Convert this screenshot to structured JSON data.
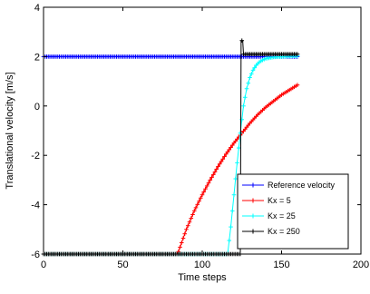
{
  "chart_data": {
    "type": "line",
    "title": "",
    "xlabel": "Time steps",
    "ylabel": "Translational velocity  [m/s]",
    "xlim": [
      0,
      200
    ],
    "ylim": [
      -6,
      4
    ],
    "xticks": [
      "0",
      "50",
      "100",
      "150",
      "200"
    ],
    "yticks": [
      "-6",
      "-4",
      "-2",
      "0",
      "2",
      "4"
    ],
    "grid": false,
    "legend_position": "bottom-right",
    "series": [
      {
        "name": "Reference velocity",
        "color": "#0000ff",
        "marker": "+",
        "x": [
          0,
          160
        ],
        "y": [
          2,
          2
        ]
      },
      {
        "name": "Kx = 5",
        "color": "#ff0000",
        "marker": "+",
        "x": [
          0,
          84,
          85,
          90,
          95,
          100,
          105,
          110,
          115,
          120,
          125,
          130,
          135,
          140,
          145,
          150,
          155,
          160
        ],
        "y": [
          -6,
          -6,
          -5.9,
          -5.0,
          -4.25,
          -3.6,
          -3.0,
          -2.45,
          -1.95,
          -1.5,
          -1.1,
          -0.7,
          -0.35,
          -0.05,
          0.2,
          0.45,
          0.65,
          0.85
        ]
      },
      {
        "name": "Kx = 25",
        "color": "#00ffff",
        "marker": "+",
        "x": [
          0,
          116,
          118,
          120,
          122,
          124,
          126,
          128,
          130,
          132,
          134,
          136,
          138,
          140,
          145,
          150,
          155,
          160
        ],
        "y": [
          -6,
          -6,
          -4.9,
          -3.6,
          -2.3,
          -1.1,
          0.0,
          0.7,
          1.15,
          1.45,
          1.65,
          1.78,
          1.86,
          1.92,
          1.98,
          2.0,
          2.02,
          2.03
        ]
      },
      {
        "name": "Kx = 250",
        "color": "#000000",
        "marker": "+",
        "x": [
          0,
          124,
          124.5,
          125.5,
          126,
          128,
          130,
          135,
          140,
          145,
          150,
          155,
          160
        ],
        "y": [
          -6,
          -6,
          2.65,
          2.65,
          2.1,
          2.1,
          2.1,
          2.1,
          2.1,
          2.1,
          2.1,
          2.1,
          2.1
        ]
      }
    ]
  }
}
